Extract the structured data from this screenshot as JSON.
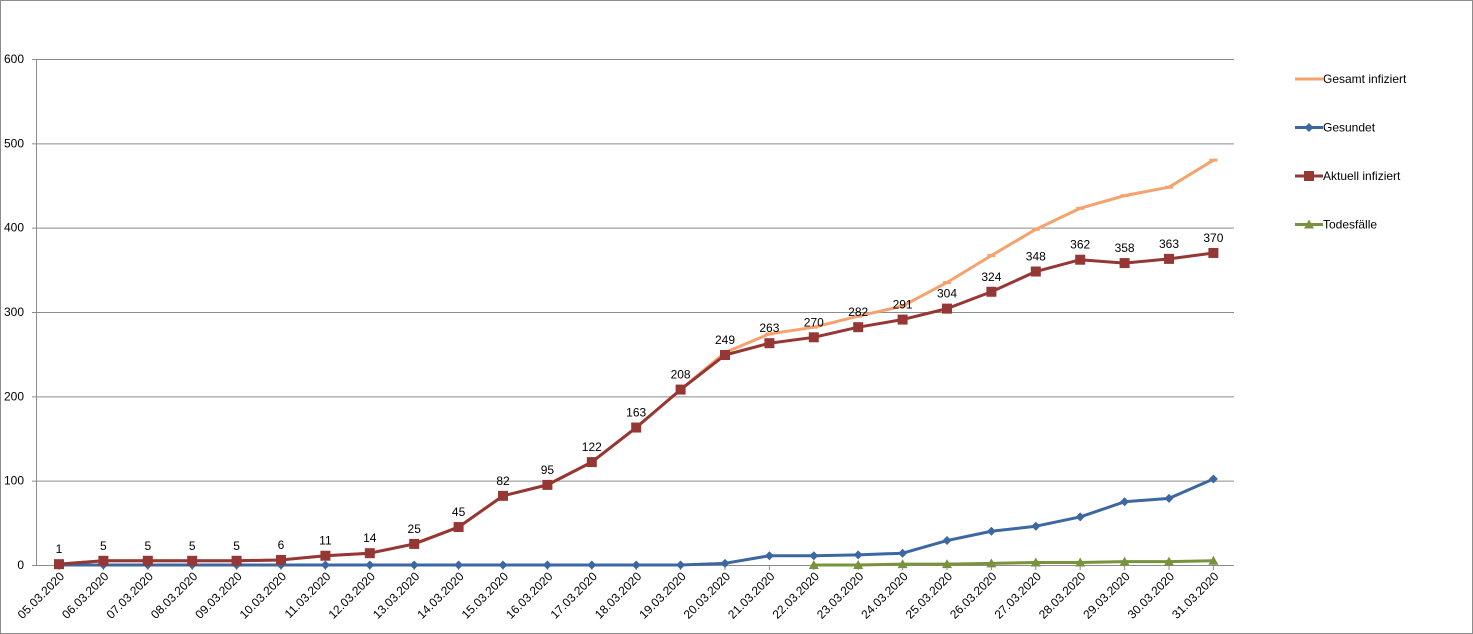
{
  "chart_data": {
    "type": "line",
    "title": "",
    "xlabel": "",
    "ylabel": "",
    "ylim": [
      0,
      600
    ],
    "yticks": [
      0,
      100,
      200,
      300,
      400,
      500,
      600
    ],
    "grid": true,
    "legend_position": "right",
    "categories": [
      "05.03.2020",
      "06.03.2020",
      "07.03.2020",
      "08.03.2020",
      "09.03.2020",
      "10.03.2020",
      "11.03.2020",
      "12.03.2020",
      "13.03.2020",
      "14.03.2020",
      "15.03.2020",
      "16.03.2020",
      "17.03.2020",
      "18.03.2020",
      "19.03.2020",
      "20.03.2020",
      "21.03.2020",
      "22.03.2020",
      "23.03.2020",
      "24.03.2020",
      "25.03.2020",
      "26.03.2020",
      "27.03.2020",
      "28.03.2020",
      "29.03.2020",
      "30.03.2020",
      "31.03.2020"
    ],
    "series": [
      {
        "name": "Gesamt infiziert",
        "color": "#f5a26e",
        "marker": "dash",
        "values": [
          1,
          5,
          5,
          5,
          5,
          6,
          11,
          14,
          25,
          45,
          82,
          95,
          122,
          163,
          208,
          252,
          274,
          282,
          295,
          307,
          335,
          367,
          398,
          423,
          438,
          448,
          480
        ]
      },
      {
        "name": "Gesundet",
        "color": "#3c67a1",
        "marker": "diamond",
        "values": [
          0,
          0,
          0,
          0,
          0,
          0,
          0,
          0,
          0,
          0,
          0,
          0,
          0,
          0,
          0,
          2,
          11,
          11,
          12,
          14,
          29,
          40,
          46,
          57,
          75,
          79,
          102
        ]
      },
      {
        "name": "Aktuell infiziert",
        "color": "#953734",
        "marker": "square",
        "show_labels": true,
        "values": [
          1,
          5,
          5,
          5,
          5,
          6,
          11,
          14,
          25,
          45,
          82,
          95,
          122,
          163,
          208,
          249,
          263,
          270,
          282,
          291,
          304,
          324,
          348,
          362,
          358,
          363,
          370
        ]
      },
      {
        "name": "Todesfälle",
        "color": "#77933c",
        "marker": "triangle",
        "values": [
          null,
          null,
          null,
          null,
          null,
          null,
          null,
          null,
          null,
          null,
          null,
          null,
          null,
          null,
          null,
          null,
          null,
          0,
          0,
          1,
          1,
          2,
          3,
          3,
          4,
          4,
          5
        ]
      }
    ]
  }
}
